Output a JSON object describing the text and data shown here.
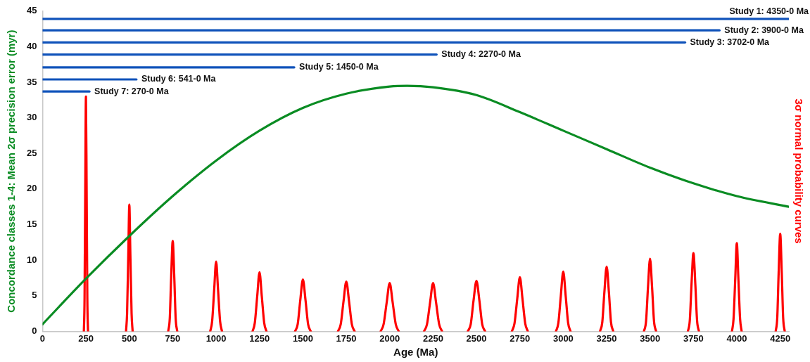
{
  "chart_data": {
    "type": "line",
    "xlabel": "Age (Ma)",
    "ylabel": "Concordance classes 1-4: Mean 2σ precision error (myr)",
    "y2label": "3σ normal probability curves",
    "xlim": [
      0,
      4300
    ],
    "xticks": [
      0,
      250,
      500,
      750,
      1000,
      1250,
      1500,
      1750,
      2000,
      2250,
      2500,
      2750,
      3000,
      3250,
      3500,
      3750,
      4000,
      4250
    ],
    "ylim": [
      0,
      45
    ],
    "yticks": [
      0,
      5,
      10,
      15,
      20,
      25,
      30,
      35,
      40,
      45
    ],
    "grid": false,
    "legend": false,
    "marker": "none",
    "series": [
      {
        "color": "#0f52ba",
        "x": [
          0,
          4300
        ],
        "values": [
          43.9,
          43.9
        ]
      },
      {
        "color": "#0f52ba",
        "x": [
          0,
          3900
        ],
        "values": [
          42.3,
          42.3
        ]
      },
      {
        "color": "#0f52ba",
        "x": [
          0,
          3702
        ],
        "values": [
          40.6,
          40.6
        ]
      },
      {
        "color": "#0f52ba",
        "x": [
          0,
          2270
        ],
        "values": [
          38.9,
          38.9
        ]
      },
      {
        "color": "#0f52ba",
        "x": [
          0,
          1450
        ],
        "values": [
          37.1,
          37.1
        ]
      },
      {
        "color": "#0f52ba",
        "x": [
          0,
          541
        ],
        "values": [
          35.4,
          35.4
        ]
      },
      {
        "color": "#0f52ba",
        "x": [
          0,
          270
        ],
        "values": [
          33.7,
          33.7
        ]
      },
      {
        "color": "#0a8c23",
        "x": [
          0,
          250,
          500,
          750,
          1000,
          1250,
          1500,
          1750,
          2000,
          2100,
          2250,
          2500,
          2750,
          3000,
          3250,
          3500,
          3750,
          4000,
          4300
        ],
        "values": [
          1,
          7.4,
          13.4,
          19,
          24,
          28.2,
          31.4,
          33.4,
          34.4,
          34.5,
          34.3,
          33.2,
          30.8,
          28.2,
          25.6,
          23,
          20.8,
          19,
          17.5
        ]
      },
      {
        "color": "#ff0000",
        "x": [
          238,
          242,
          246,
          250,
          254,
          258,
          262
        ],
        "values": [
          0,
          4.6,
          19.8,
          33,
          19.8,
          4.6,
          0
        ]
      },
      {
        "color": "#ff0000",
        "x": [
          481,
          487,
          494,
          500,
          506,
          513,
          519
        ],
        "values": [
          0,
          2.5,
          10.7,
          17.8,
          10.7,
          2.5,
          0
        ]
      },
      {
        "color": "#ff0000",
        "x": [
          724,
          733,
          741,
          750,
          759,
          767,
          776
        ],
        "values": [
          0,
          1.8,
          7.6,
          12.7,
          7.6,
          1.8,
          0
        ]
      },
      {
        "color": "#ff0000",
        "x": [
          966,
          977,
          989,
          1000,
          1011,
          1023,
          1034
        ],
        "values": [
          0,
          1.4,
          5.9,
          9.8,
          5.9,
          1.4,
          0
        ]
      },
      {
        "color": "#ff0000",
        "x": [
          1210,
          1223,
          1237,
          1250,
          1263,
          1277,
          1290
        ],
        "values": [
          0,
          1.2,
          5,
          8.3,
          5,
          1.2,
          0
        ]
      },
      {
        "color": "#ff0000",
        "x": [
          1455,
          1470,
          1485,
          1500,
          1515,
          1530,
          1545
        ],
        "values": [
          0,
          1,
          4.4,
          7.3,
          4.4,
          1,
          0
        ]
      },
      {
        "color": "#ff0000",
        "x": [
          1702,
          1718,
          1734,
          1750,
          1766,
          1782,
          1798
        ],
        "values": [
          0,
          1,
          4.2,
          7,
          4.2,
          1,
          0
        ]
      },
      {
        "color": "#ff0000",
        "x": [
          1948,
          1965,
          1983,
          2000,
          2017,
          2035,
          2052
        ],
        "values": [
          0,
          1,
          4.1,
          6.8,
          4.1,
          1,
          0
        ]
      },
      {
        "color": "#ff0000",
        "x": [
          2198,
          2215,
          2233,
          2250,
          2267,
          2285,
          2302
        ],
        "values": [
          0,
          1,
          4.1,
          6.8,
          4.1,
          1,
          0
        ]
      },
      {
        "color": "#ff0000",
        "x": [
          2450,
          2467,
          2483,
          2500,
          2517,
          2533,
          2550
        ],
        "values": [
          0,
          1,
          4.3,
          7.1,
          4.3,
          1,
          0
        ]
      },
      {
        "color": "#ff0000",
        "x": [
          2704,
          2719,
          2735,
          2750,
          2765,
          2781,
          2796
        ],
        "values": [
          0,
          1.1,
          4.6,
          7.6,
          4.6,
          1.1,
          0
        ]
      },
      {
        "color": "#ff0000",
        "x": [
          2958,
          2972,
          2986,
          3000,
          3014,
          3028,
          3042
        ],
        "values": [
          0,
          1.2,
          5,
          8.4,
          5,
          1.2,
          0
        ]
      },
      {
        "color": "#ff0000",
        "x": [
          3212,
          3225,
          3237,
          3250,
          3263,
          3275,
          3288
        ],
        "values": [
          0,
          1.3,
          5.5,
          9.1,
          5.5,
          1.3,
          0
        ]
      },
      {
        "color": "#ff0000",
        "x": [
          3465,
          3477,
          3488,
          3500,
          3512,
          3523,
          3535
        ],
        "values": [
          0,
          1.4,
          6.1,
          10.2,
          6.1,
          1.4,
          0
        ]
      },
      {
        "color": "#ff0000",
        "x": [
          3718,
          3729,
          3739,
          3750,
          3761,
          3771,
          3782
        ],
        "values": [
          0,
          1.5,
          6.6,
          11,
          6.6,
          1.5,
          0
        ]
      },
      {
        "color": "#ff0000",
        "x": [
          3972,
          3981,
          3991,
          4000,
          4009,
          4019,
          4028
        ],
        "values": [
          0,
          1.7,
          7.4,
          12.4,
          7.4,
          1.7,
          0
        ]
      },
      {
        "color": "#ff0000",
        "x": [
          4224,
          4233,
          4241,
          4250,
          4259,
          4267,
          4276
        ],
        "values": [
          0,
          1.9,
          8.2,
          13.7,
          8.2,
          1.9,
          0
        ]
      }
    ],
    "annotations": [
      {
        "text": "Study 1: 4350-0 Ma",
        "x": 4300,
        "y": 43.9
      },
      {
        "text": "Study 2: 3900-0 Ma",
        "x": 3900,
        "y": 42.3
      },
      {
        "text": "Study 3: 3702-0 Ma",
        "x": 3702,
        "y": 40.6
      },
      {
        "text": "Study 4: 2270-0 Ma",
        "x": 2270,
        "y": 38.9
      },
      {
        "text": "Study 5: 1450-0 Ma",
        "x": 1450,
        "y": 37.1
      },
      {
        "text": "Study 6: 541-0 Ma",
        "x": 541,
        "y": 35.4
      },
      {
        "text": "Study 7: 270-0 Ma",
        "x": 270,
        "y": 33.7
      }
    ]
  }
}
